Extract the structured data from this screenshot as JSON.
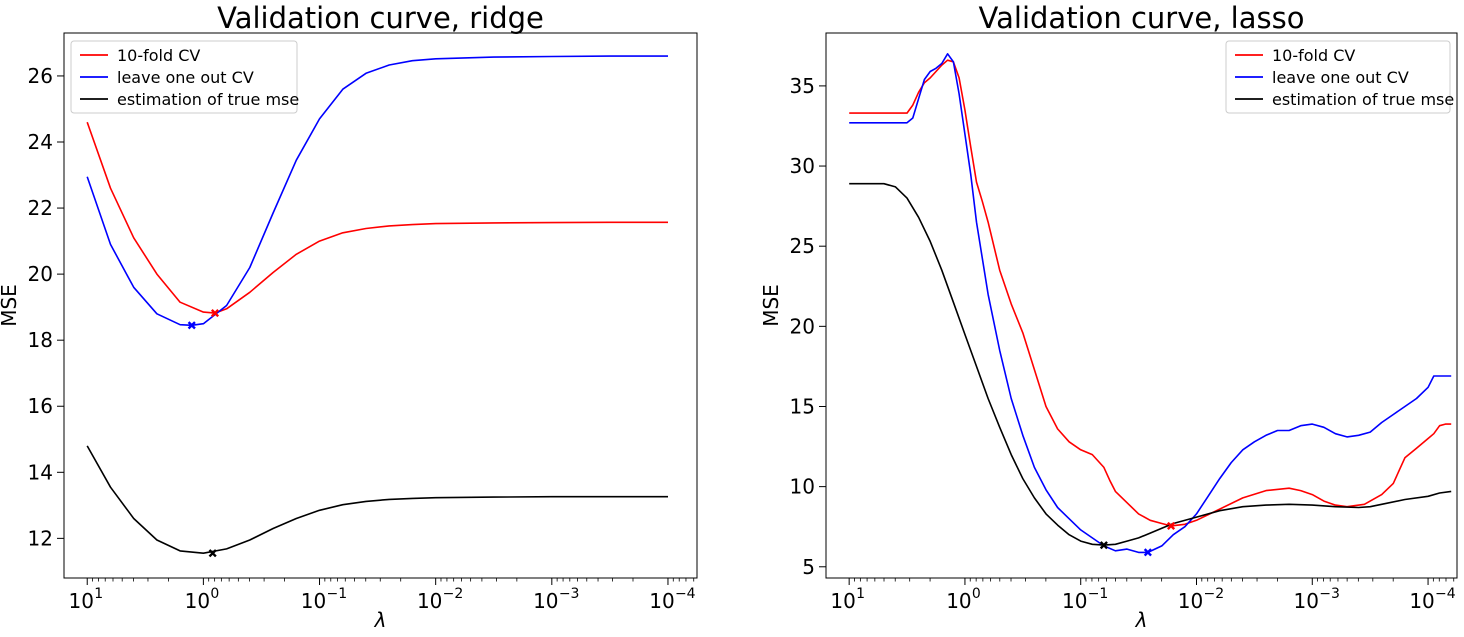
{
  "chart_data": [
    {
      "type": "line",
      "title": "Validation curve, ridge",
      "xlabel": "λ",
      "ylabel": "MSE",
      "x_scale": "log",
      "x_reversed": true,
      "x_range_exponent": [
        1.2,
        -4.25
      ],
      "ylim": [
        10.8,
        27.3
      ],
      "x_tick_exponents": [
        1,
        0,
        -1,
        -2,
        -3,
        -4
      ],
      "x_tick_labels": [
        "10",
        "10",
        "10",
        "10",
        "10",
        "10"
      ],
      "x_tick_superscripts": [
        "1",
        "0",
        "−1",
        "−2",
        "−3",
        "−4"
      ],
      "y_ticks": [
        12,
        14,
        16,
        18,
        20,
        22,
        24,
        26
      ],
      "grid": false,
      "legend_position": "top-left",
      "series": [
        {
          "name": "10-fold CV",
          "color": "#ff0000",
          "points": [
            [
              1,
              24.6
            ],
            [
              0.8,
              22.6
            ],
            [
              0.6,
              21.1
            ],
            [
              0.4,
              20.0
            ],
            [
              0.2,
              19.15
            ],
            [
              0,
              18.85
            ],
            [
              -0.1,
              18.82
            ],
            [
              -0.2,
              18.95
            ],
            [
              -0.4,
              19.45
            ],
            [
              -0.6,
              20.05
            ],
            [
              -0.8,
              20.6
            ],
            [
              -1,
              21.0
            ],
            [
              -1.2,
              21.25
            ],
            [
              -1.4,
              21.38
            ],
            [
              -1.6,
              21.46
            ],
            [
              -1.8,
              21.5
            ],
            [
              -2,
              21.53
            ],
            [
              -2.5,
              21.55
            ],
            [
              -3,
              21.56
            ],
            [
              -3.5,
              21.57
            ],
            [
              -4,
              21.57
            ]
          ],
          "minimum": [
            -0.1,
            18.82
          ]
        },
        {
          "name": "leave one out CV",
          "color": "#0000ff",
          "points": [
            [
              1,
              22.95
            ],
            [
              0.8,
              20.9
            ],
            [
              0.6,
              19.6
            ],
            [
              0.4,
              18.8
            ],
            [
              0.2,
              18.47
            ],
            [
              0.1,
              18.45
            ],
            [
              0,
              18.5
            ],
            [
              -0.2,
              19.05
            ],
            [
              -0.4,
              20.2
            ],
            [
              -0.6,
              21.85
            ],
            [
              -0.8,
              23.45
            ],
            [
              -1,
              24.7
            ],
            [
              -1.2,
              25.6
            ],
            [
              -1.4,
              26.08
            ],
            [
              -1.6,
              26.33
            ],
            [
              -1.8,
              26.46
            ],
            [
              -2,
              26.52
            ],
            [
              -2.5,
              26.57
            ],
            [
              -3,
              26.59
            ],
            [
              -3.5,
              26.6
            ],
            [
              -4,
              26.6
            ]
          ],
          "minimum": [
            0.1,
            18.45
          ]
        },
        {
          "name": "estimation of true mse",
          "color": "#000000",
          "points": [
            [
              1,
              14.8
            ],
            [
              0.8,
              13.55
            ],
            [
              0.6,
              12.6
            ],
            [
              0.4,
              11.95
            ],
            [
              0.2,
              11.62
            ],
            [
              0,
              11.55
            ],
            [
              -0.2,
              11.68
            ],
            [
              -0.4,
              11.95
            ],
            [
              -0.6,
              12.3
            ],
            [
              -0.8,
              12.6
            ],
            [
              -1,
              12.85
            ],
            [
              -1.2,
              13.02
            ],
            [
              -1.4,
              13.12
            ],
            [
              -1.6,
              13.18
            ],
            [
              -1.8,
              13.21
            ],
            [
              -2,
              13.23
            ],
            [
              -2.5,
              13.25
            ],
            [
              -3,
              13.26
            ],
            [
              -3.5,
              13.26
            ],
            [
              -4,
              13.26
            ]
          ],
          "minimum": [
            -0.08,
            11.55
          ]
        }
      ]
    },
    {
      "type": "line",
      "title": "Validation curve, lasso",
      "xlabel": "λ",
      "ylabel": "MSE",
      "x_scale": "log",
      "x_reversed": true,
      "x_range_exponent": [
        1.2,
        -4.25
      ],
      "ylim": [
        4.3,
        38.3
      ],
      "x_tick_exponents": [
        1,
        0,
        -1,
        -2,
        -3,
        -4
      ],
      "x_tick_labels": [
        "10",
        "10",
        "10",
        "10",
        "10",
        "10"
      ],
      "x_tick_superscripts": [
        "1",
        "0",
        "−1",
        "−2",
        "−3",
        "−4"
      ],
      "y_ticks": [
        5,
        10,
        15,
        20,
        25,
        30,
        35
      ],
      "grid": false,
      "legend_position": "top-right",
      "series": [
        {
          "name": "10-fold CV",
          "color": "#ff0000",
          "points": [
            [
              1,
              33.3
            ],
            [
              0.7,
              33.3
            ],
            [
              0.5,
              33.3
            ],
            [
              0.45,
              33.8
            ],
            [
              0.4,
              34.6
            ],
            [
              0.35,
              35.2
            ],
            [
              0.3,
              35.5
            ],
            [
              0.25,
              35.9
            ],
            [
              0.2,
              36.3
            ],
            [
              0.15,
              36.6
            ],
            [
              0.1,
              36.5
            ],
            [
              0.05,
              35.5
            ],
            [
              0,
              33.5
            ],
            [
              -0.05,
              31.2
            ],
            [
              -0.1,
              29.0
            ],
            [
              -0.15,
              27.8
            ],
            [
              -0.2,
              26.5
            ],
            [
              -0.3,
              23.5
            ],
            [
              -0.4,
              21.4
            ],
            [
              -0.5,
              19.6
            ],
            [
              -0.6,
              17.3
            ],
            [
              -0.7,
              15.0
            ],
            [
              -0.8,
              13.6
            ],
            [
              -0.9,
              12.8
            ],
            [
              -1,
              12.3
            ],
            [
              -1.1,
              12.0
            ],
            [
              -1.2,
              11.2
            ],
            [
              -1.25,
              10.4
            ],
            [
              -1.3,
              9.7
            ],
            [
              -1.4,
              9.0
            ],
            [
              -1.5,
              8.3
            ],
            [
              -1.6,
              7.9
            ],
            [
              -1.7,
              7.7
            ],
            [
              -1.78,
              7.55
            ],
            [
              -1.9,
              7.65
            ],
            [
              -2,
              7.9
            ],
            [
              -2.2,
              8.6
            ],
            [
              -2.4,
              9.3
            ],
            [
              -2.6,
              9.75
            ],
            [
              -2.8,
              9.9
            ],
            [
              -2.9,
              9.75
            ],
            [
              -3,
              9.5
            ],
            [
              -3.1,
              9.1
            ],
            [
              -3.2,
              8.85
            ],
            [
              -3.3,
              8.75
            ],
            [
              -3.45,
              8.9
            ],
            [
              -3.6,
              9.5
            ],
            [
              -3.7,
              10.2
            ],
            [
              -3.8,
              11.8
            ],
            [
              -3.9,
              12.4
            ],
            [
              -4,
              13.0
            ],
            [
              -4.05,
              13.3
            ],
            [
              -4.1,
              13.8
            ],
            [
              -4.15,
              13.9
            ],
            [
              -4.2,
              13.9
            ]
          ],
          "minimum": [
            -1.78,
            7.55
          ]
        },
        {
          "name": "leave one out CV",
          "color": "#0000ff",
          "points": [
            [
              1,
              32.7
            ],
            [
              0.7,
              32.7
            ],
            [
              0.5,
              32.7
            ],
            [
              0.45,
              33.0
            ],
            [
              0.4,
              34.2
            ],
            [
              0.35,
              35.4
            ],
            [
              0.3,
              35.9
            ],
            [
              0.25,
              36.1
            ],
            [
              0.2,
              36.4
            ],
            [
              0.15,
              37.0
            ],
            [
              0.1,
              36.5
            ],
            [
              0.05,
              34.5
            ],
            [
              0,
              32.0
            ],
            [
              -0.05,
              29.5
            ],
            [
              -0.1,
              26.5
            ],
            [
              -0.2,
              22.0
            ],
            [
              -0.3,
              18.5
            ],
            [
              -0.4,
              15.5
            ],
            [
              -0.5,
              13.2
            ],
            [
              -0.6,
              11.2
            ],
            [
              -0.7,
              9.8
            ],
            [
              -0.8,
              8.7
            ],
            [
              -0.9,
              8.0
            ],
            [
              -1,
              7.3
            ],
            [
              -1.1,
              6.8
            ],
            [
              -1.2,
              6.3
            ],
            [
              -1.3,
              6.0
            ],
            [
              -1.4,
              6.1
            ],
            [
              -1.5,
              5.9
            ],
            [
              -1.58,
              5.9
            ],
            [
              -1.7,
              6.3
            ],
            [
              -1.8,
              7.0
            ],
            [
              -1.9,
              7.5
            ],
            [
              -2,
              8.3
            ],
            [
              -2.1,
              9.4
            ],
            [
              -2.2,
              10.5
            ],
            [
              -2.3,
              11.5
            ],
            [
              -2.4,
              12.3
            ],
            [
              -2.5,
              12.8
            ],
            [
              -2.6,
              13.2
            ],
            [
              -2.7,
              13.5
            ],
            [
              -2.8,
              13.5
            ],
            [
              -2.9,
              13.8
            ],
            [
              -3,
              13.9
            ],
            [
              -3.1,
              13.7
            ],
            [
              -3.2,
              13.3
            ],
            [
              -3.3,
              13.1
            ],
            [
              -3.4,
              13.2
            ],
            [
              -3.5,
              13.4
            ],
            [
              -3.6,
              14.0
            ],
            [
              -3.7,
              14.5
            ],
            [
              -3.8,
              15.0
            ],
            [
              -3.9,
              15.5
            ],
            [
              -4,
              16.2
            ],
            [
              -4.05,
              16.9
            ],
            [
              -4.1,
              16.9
            ],
            [
              -4.2,
              16.9
            ]
          ],
          "minimum": [
            -1.58,
            5.9
          ]
        },
        {
          "name": "estimation of true mse",
          "color": "#000000",
          "points": [
            [
              1,
              28.9
            ],
            [
              0.7,
              28.9
            ],
            [
              0.6,
              28.7
            ],
            [
              0.5,
              28.0
            ],
            [
              0.4,
              26.8
            ],
            [
              0.3,
              25.3
            ],
            [
              0.2,
              23.5
            ],
            [
              0.1,
              21.5
            ],
            [
              0,
              19.5
            ],
            [
              -0.1,
              17.5
            ],
            [
              -0.2,
              15.5
            ],
            [
              -0.3,
              13.7
            ],
            [
              -0.4,
              12.0
            ],
            [
              -0.5,
              10.5
            ],
            [
              -0.6,
              9.3
            ],
            [
              -0.7,
              8.3
            ],
            [
              -0.8,
              7.6
            ],
            [
              -0.9,
              7.0
            ],
            [
              -1,
              6.6
            ],
            [
              -1.1,
              6.4
            ],
            [
              -1.2,
              6.35
            ],
            [
              -1.3,
              6.4
            ],
            [
              -1.4,
              6.6
            ],
            [
              -1.5,
              6.8
            ],
            [
              -1.6,
              7.1
            ],
            [
              -1.7,
              7.4
            ],
            [
              -1.8,
              7.7
            ],
            [
              -2,
              8.1
            ],
            [
              -2.2,
              8.5
            ],
            [
              -2.4,
              8.75
            ],
            [
              -2.6,
              8.85
            ],
            [
              -2.8,
              8.9
            ],
            [
              -3,
              8.85
            ],
            [
              -3.2,
              8.75
            ],
            [
              -3.4,
              8.7
            ],
            [
              -3.5,
              8.75
            ],
            [
              -3.6,
              8.9
            ],
            [
              -3.8,
              9.2
            ],
            [
              -4,
              9.4
            ],
            [
              -4.1,
              9.6
            ],
            [
              -4.2,
              9.7
            ]
          ],
          "minimum": [
            -1.2,
            6.35
          ]
        }
      ]
    }
  ]
}
